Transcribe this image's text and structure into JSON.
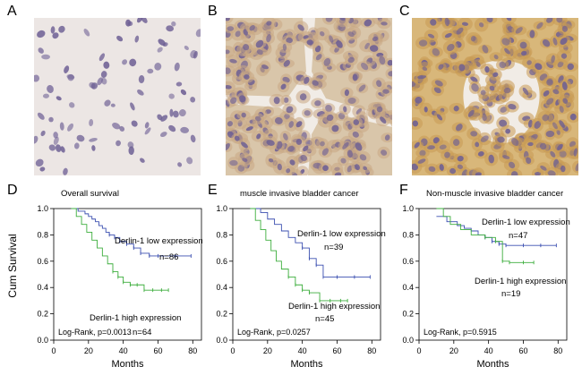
{
  "figure": {
    "panels": {
      "A": {
        "letter": "A"
      },
      "B": {
        "letter": "B"
      },
      "C": {
        "letter": "C"
      },
      "D": {
        "letter": "D"
      },
      "E": {
        "letter": "E"
      },
      "F": {
        "letter": "F"
      }
    },
    "shared": {
      "ylabel": "Cum Survival",
      "xlabel": "Months",
      "yticks": [
        "1.0",
        "0.8",
        "0.6",
        "0.4",
        "0.2",
        "0.0"
      ],
      "xticks": [
        "0",
        "20",
        "40",
        "60",
        "80"
      ]
    }
  },
  "colors": {
    "low": "#3b4fb0",
    "high": "#3dae3d",
    "stain_low_bg": "#ece6e4",
    "stain_mid_bg": "#d9c6aa",
    "stain_high_bg": "#d8b77a",
    "nucleus": "#6d5f94"
  },
  "chart_data": [
    {
      "id": "D",
      "type": "line",
      "title": "Overall survival",
      "xlabel": "Months",
      "ylabel": "Cum Survival",
      "xlim": [
        0,
        85
      ],
      "ylim": [
        0.0,
        1.0
      ],
      "series": [
        {
          "name": "Derlin-1 low expression",
          "label": "Derlin-1 low expression",
          "n": "n=86",
          "x": [
            10,
            14,
            18,
            20,
            22,
            24,
            26,
            28,
            30,
            32,
            35,
            38,
            42,
            46,
            50,
            55,
            60,
            70,
            79
          ],
          "y": [
            1.0,
            0.98,
            0.96,
            0.94,
            0.92,
            0.9,
            0.87,
            0.85,
            0.82,
            0.8,
            0.78,
            0.75,
            0.73,
            0.7,
            0.66,
            0.64,
            0.64,
            0.64,
            0.64
          ]
        },
        {
          "name": "Derlin-1 high expression",
          "label": "Derlin-1 high expression",
          "n": "n=64",
          "x": [
            10,
            13,
            16,
            19,
            22,
            25,
            28,
            31,
            34,
            37,
            40,
            44,
            48,
            52,
            57,
            62,
            66
          ],
          "y": [
            1.0,
            0.94,
            0.88,
            0.82,
            0.76,
            0.7,
            0.64,
            0.58,
            0.52,
            0.48,
            0.44,
            0.42,
            0.42,
            0.38,
            0.38,
            0.38,
            0.38
          ]
        }
      ],
      "annotation": "Log-Rank, p=0.0013"
    },
    {
      "id": "E",
      "type": "line",
      "title": "muscle invasive bladder cancer",
      "xlabel": "Months",
      "ylabel": "",
      "xlim": [
        0,
        85
      ],
      "ylim": [
        0.0,
        1.0
      ],
      "series": [
        {
          "name": "Derlin-1 low expression",
          "label": "Derlin-1 low expression",
          "n": "n=39",
          "x": [
            10,
            16,
            20,
            24,
            28,
            32,
            36,
            40,
            44,
            48,
            52,
            60,
            70,
            79
          ],
          "y": [
            1.0,
            0.97,
            0.92,
            0.88,
            0.83,
            0.78,
            0.74,
            0.7,
            0.62,
            0.57,
            0.48,
            0.48,
            0.48,
            0.48
          ]
        },
        {
          "name": "Derlin-1 high expression",
          "label": "Derlin-1 high expression",
          "n": "n=45",
          "x": [
            10,
            13,
            16,
            19,
            22,
            25,
            28,
            32,
            36,
            40,
            44,
            50,
            56,
            62,
            66
          ],
          "y": [
            1.0,
            0.91,
            0.84,
            0.76,
            0.68,
            0.6,
            0.54,
            0.48,
            0.42,
            0.38,
            0.36,
            0.3,
            0.3,
            0.3,
            0.3
          ]
        }
      ],
      "annotation": "Log-Rank, p=0.0257"
    },
    {
      "id": "F",
      "type": "line",
      "title": "Non-muscle invasive bladder cancer",
      "xlabel": "Months",
      "ylabel": "",
      "xlim": [
        0,
        85
      ],
      "ylim": [
        0.0,
        1.0
      ],
      "series": [
        {
          "name": "Derlin-1 low expression",
          "label": "Derlin-1 low expression",
          "n": "n=47",
          "x": [
            10,
            16,
            22,
            26,
            30,
            34,
            38,
            42,
            46,
            50,
            60,
            70,
            79
          ],
          "y": [
            0.94,
            0.9,
            0.87,
            0.85,
            0.83,
            0.8,
            0.78,
            0.75,
            0.73,
            0.72,
            0.72,
            0.72,
            0.72
          ]
        },
        {
          "name": "Derlin-1 high expression",
          "label": "Derlin-1 high expression",
          "n": "n=19",
          "x": [
            10,
            14,
            18,
            24,
            30,
            38,
            44,
            48,
            52,
            60,
            66
          ],
          "y": [
            1.0,
            0.94,
            0.88,
            0.84,
            0.8,
            0.78,
            0.75,
            0.6,
            0.59,
            0.59,
            0.59
          ]
        }
      ],
      "annotation": "Log-Rank, p=0.5915"
    }
  ]
}
